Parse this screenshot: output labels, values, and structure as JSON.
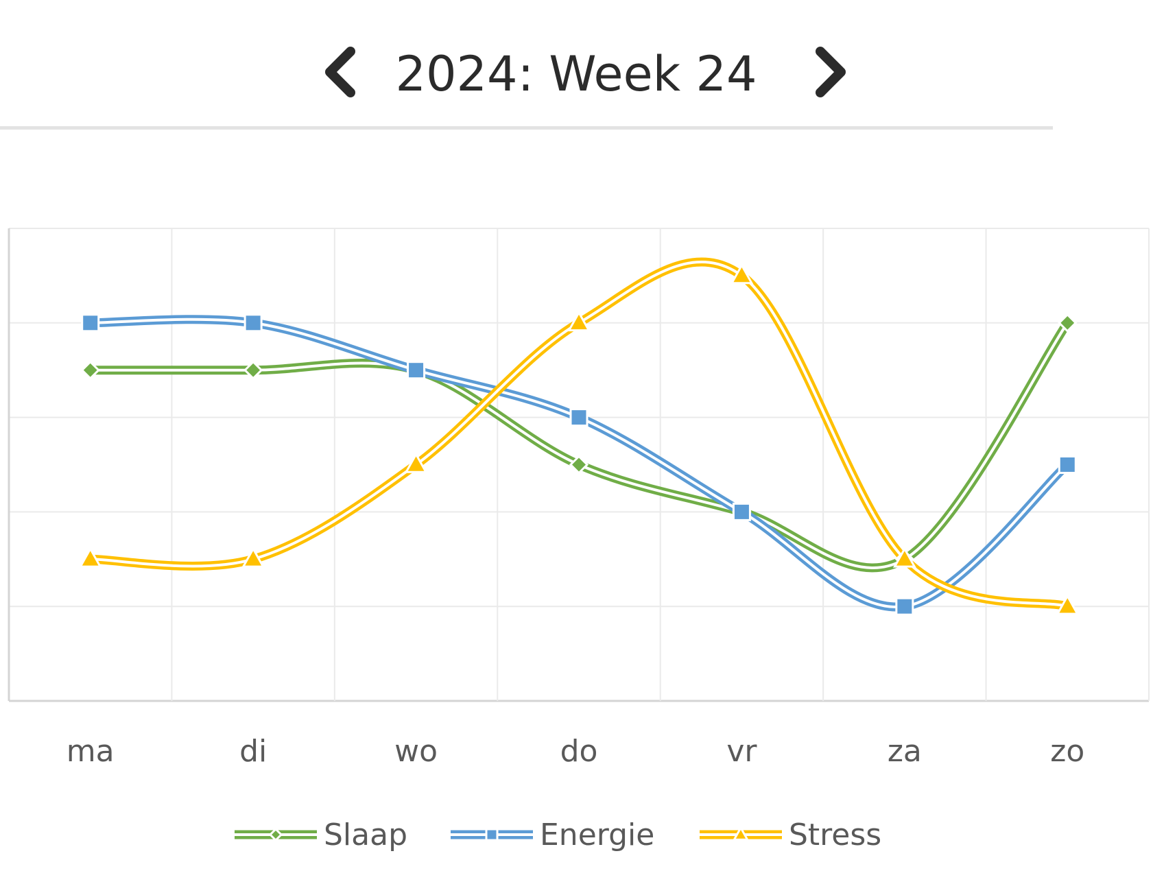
{
  "header": {
    "title": "2024: Week 24",
    "prev_icon": "chevron-left-icon",
    "next_icon": "chevron-right-icon"
  },
  "chart_data": {
    "type": "line",
    "smooth": true,
    "categories": [
      "ma",
      "di",
      "wo",
      "do",
      "vr",
      "za",
      "zo"
    ],
    "ylim": [
      0,
      5
    ],
    "grid": true,
    "legend": "bottom",
    "title": "",
    "xlabel": "",
    "ylabel": "",
    "series": [
      {
        "name": "Slaap",
        "values": [
          3.5,
          3.5,
          3.5,
          2.5,
          2.0,
          1.5,
          4.0
        ],
        "color": "#70ad47",
        "marker": "diamond"
      },
      {
        "name": "Energie",
        "values": [
          4.0,
          4.0,
          3.5,
          3.0,
          2.0,
          1.0,
          2.5
        ],
        "color": "#5b9bd5",
        "marker": "square"
      },
      {
        "name": "Stress",
        "values": [
          1.5,
          1.5,
          2.5,
          4.0,
          4.5,
          1.5,
          1.0
        ],
        "color": "#ffc000",
        "marker": "triangle"
      }
    ]
  }
}
